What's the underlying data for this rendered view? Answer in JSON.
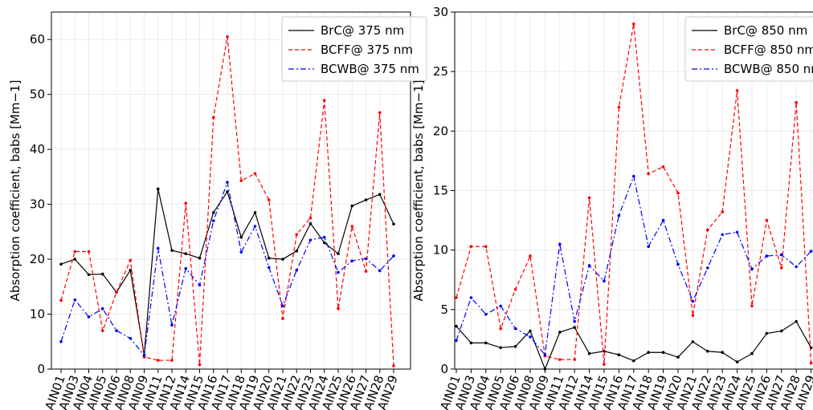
{
  "chart_data": [
    {
      "type": "line",
      "ylabel": "Absorption coefficient, babs  [Mm−1]",
      "categories": [
        "AIN01",
        "AIN03",
        "AIN04",
        "AIN05",
        "AIN06",
        "AIN08",
        "AIN09",
        "AIN11",
        "AIN12",
        "AIN14",
        "AIN15",
        "AIN16",
        "AIN17",
        "AIN18",
        "AIN19",
        "AIN20",
        "AIN21",
        "AIN22",
        "AIN23",
        "AIN24",
        "AIN25",
        "AIN26",
        "AIN27",
        "AIN28",
        "AIN29"
      ],
      "ylim": [
        0,
        65
      ],
      "yticks": [
        0,
        10,
        20,
        30,
        40,
        50,
        60
      ],
      "grid": true,
      "legend": "upper right",
      "series": [
        {
          "name": "BrC@ 375 nm",
          "color": "#000000",
          "dash": "solid",
          "values": [
            19.1,
            20,
            17.2,
            17.3,
            14,
            18,
            2.5,
            32.8,
            21.6,
            21,
            20.2,
            28.5,
            32.3,
            24,
            28.5,
            20.2,
            20,
            21.5,
            26.5,
            23,
            21,
            29.7,
            30.8,
            31.8,
            26.4
          ]
        },
        {
          "name": "BCFF@ 375 nm",
          "color": "#ff0000",
          "dash": "dashed",
          "values": [
            12.5,
            21.4,
            21.4,
            7,
            14,
            19.8,
            2.2,
            1.6,
            1.6,
            30.2,
            0.8,
            45.8,
            60.5,
            34.3,
            35.6,
            30.8,
            9.2,
            24.5,
            27.5,
            48.9,
            11,
            26,
            17.8,
            46.7,
            0.6
          ]
        },
        {
          "name": "BCWB@ 375 nm",
          "color": "#0000ff",
          "dash": "dashdot",
          "values": [
            5,
            12.6,
            9.5,
            11,
            7,
            5.6,
            2.5,
            22,
            8,
            18.3,
            15.3,
            27,
            34,
            21.3,
            26,
            18.5,
            11.5,
            18,
            23.5,
            24,
            17.6,
            19.7,
            20.1,
            17.9,
            20.6
          ]
        }
      ]
    },
    {
      "type": "line",
      "ylabel": "Absorption coefficient, babs  [Mm−1]",
      "categories": [
        "AIN01",
        "AIN03",
        "AIN04",
        "AIN05",
        "AIN06",
        "AIN08",
        "AIN09",
        "AIN11",
        "AIN12",
        "AIN14",
        "AIN15",
        "AIN16",
        "AIN17",
        "AIN18",
        "AIN19",
        "AIN20",
        "AIN21",
        "AIN22",
        "AIN23",
        "AIN24",
        "AIN25",
        "AIN26",
        "AIN27",
        "AIN28",
        "AIN29"
      ],
      "ylim": [
        0,
        30
      ],
      "yticks": [
        0,
        5,
        10,
        15,
        20,
        25,
        30
      ],
      "grid": true,
      "legend": "upper right",
      "series": [
        {
          "name": "BrC@ 850 nm",
          "color": "#000000",
          "dash": "solid",
          "values": [
            3.6,
            2.2,
            2.2,
            1.8,
            1.9,
            3.2,
            0,
            3.1,
            3.5,
            1.3,
            1.5,
            1.2,
            0.7,
            1.4,
            1.4,
            1,
            2.3,
            1.5,
            1.4,
            0.6,
            1.3,
            3,
            3.2,
            4,
            1.8
          ]
        },
        {
          "name": "BCFF@ 850 nm",
          "color": "#ff0000",
          "dash": "dashed",
          "values": [
            6,
            10.3,
            10.3,
            3.4,
            6.7,
            9.5,
            1.1,
            0.8,
            0.8,
            14.4,
            0.4,
            22,
            29,
            16.4,
            17,
            14.8,
            4.5,
            11.7,
            13.2,
            23.4,
            5.3,
            12.5,
            8.5,
            22.4,
            0.5
          ]
        },
        {
          "name": "BCWB@ 850 nm",
          "color": "#0000ff",
          "dash": "dashdot",
          "values": [
            2.4,
            6,
            4.6,
            5.3,
            3.4,
            2.7,
            1.2,
            10.5,
            4,
            8.7,
            7.4,
            12.9,
            16.2,
            10.3,
            12.5,
            8.8,
            5.7,
            8.5,
            11.3,
            11.5,
            8.4,
            9.5,
            9.6,
            8.6,
            9.9
          ]
        }
      ]
    }
  ]
}
